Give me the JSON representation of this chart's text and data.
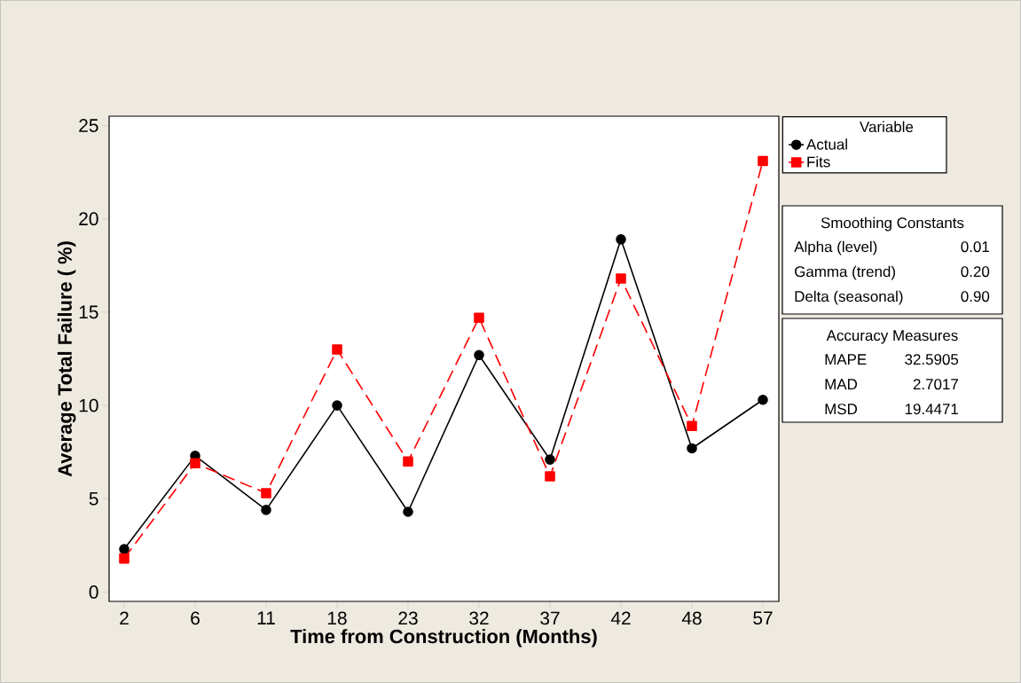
{
  "chart_data": {
    "type": "line",
    "xlabel": "Time from Construction (Months)",
    "ylabel": "Average Total Failure ( %)",
    "categories": [
      "2",
      "6",
      "11",
      "18",
      "23",
      "32",
      "37",
      "42",
      "48",
      "57"
    ],
    "series": [
      {
        "name": "Actual",
        "color": "#000000",
        "marker": "circle",
        "line_style": "solid",
        "values": [
          2.3,
          7.3,
          4.4,
          10.0,
          4.3,
          12.7,
          7.1,
          18.9,
          7.7,
          10.3
        ]
      },
      {
        "name": "Fits",
        "color": "#ff0000",
        "marker": "square",
        "line_style": "dashed",
        "values": [
          1.8,
          6.9,
          5.3,
          13.0,
          7.0,
          14.7,
          6.2,
          16.8,
          8.9,
          23.1
        ]
      }
    ],
    "ylim": [
      -0.5,
      25.5
    ],
    "yticks": [
      0,
      5,
      10,
      15,
      20,
      25
    ],
    "grid": false,
    "legend": "top right",
    "legend_title": "Variable",
    "annotations": [
      "Smoothing Constants",
      "Alpha (level)",
      "0.01",
      "Gamma (trend)",
      "0.20",
      "Delta (seasonal)",
      "0.90",
      "Accuracy Measures",
      "MAPE",
      "32.5905",
      "MAD",
      "2.7017",
      "MSD",
      "19.4471"
    ]
  }
}
